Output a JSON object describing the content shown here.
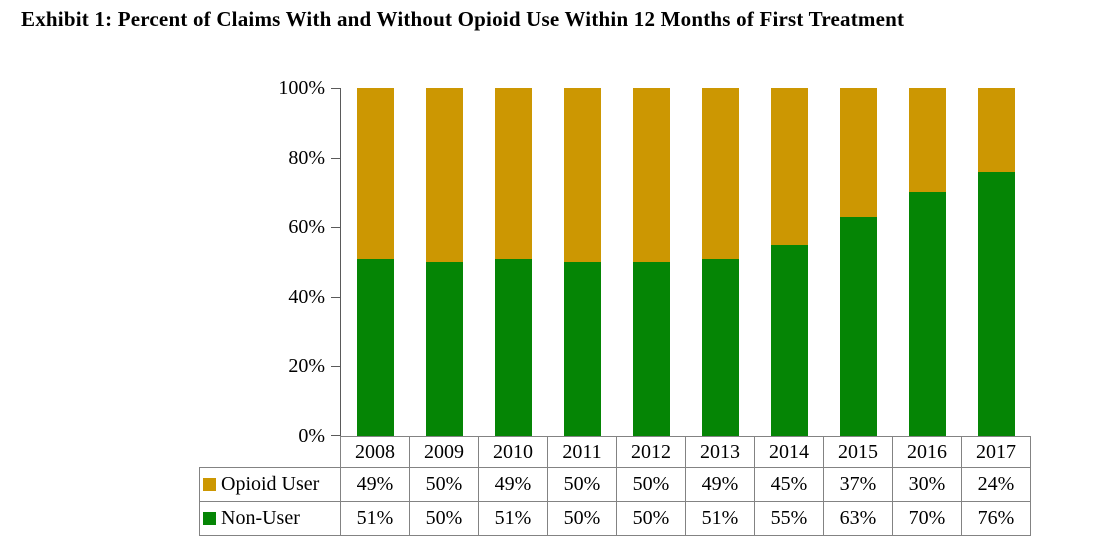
{
  "page": {
    "title": "Exhibit 1: Percent of Claims With and Without Opioid Use Within 12 Months of First Treatment"
  },
  "chart_data": {
    "type": "bar",
    "stacked": true,
    "title": "Exhibit 1: Percent of Claims With and Without Opioid Use Within 12 Months of First Treatment",
    "categories": [
      "2008",
      "2009",
      "2010",
      "2011",
      "2012",
      "2013",
      "2014",
      "2015",
      "2016",
      "2017"
    ],
    "series": [
      {
        "name": "Opioid User",
        "color": "#CC9702",
        "values": [
          49,
          50,
          49,
          50,
          50,
          49,
          45,
          37,
          30,
          24
        ]
      },
      {
        "name": "Non-User",
        "color": "#058505",
        "values": [
          51,
          50,
          51,
          50,
          50,
          51,
          55,
          63,
          70,
          76
        ]
      }
    ],
    "value_suffix": "%",
    "xlabel": "",
    "ylabel": "",
    "ylim": [
      0,
      100
    ],
    "yticks": [
      "100%",
      "80%",
      "60%",
      "40%",
      "20%",
      "0%"
    ],
    "grid": false,
    "legend_position": "data-table-left",
    "data_table": true,
    "axis_color": "#5a5a5a",
    "table_border_color": "#838383"
  }
}
